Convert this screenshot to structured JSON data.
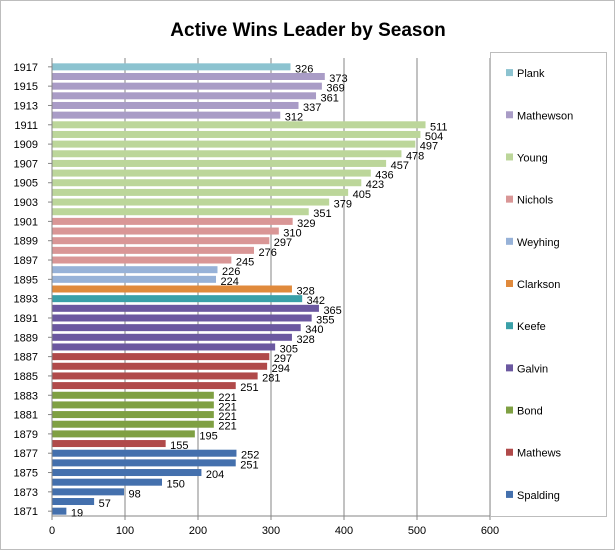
{
  "chart_data": {
    "type": "bar",
    "orientation": "horizontal",
    "title": "Active Wins Leader by Season",
    "xlabel": "",
    "ylabel": "",
    "xlim": [
      0,
      600
    ],
    "x_ticks": [
      "0",
      "100",
      "200",
      "300",
      "400",
      "500",
      "600"
    ],
    "grid": "vertical major gridlines",
    "legend_position": "right",
    "categories": [
      "1917",
      "1916",
      "1915",
      "1914",
      "1913",
      "1912",
      "1911",
      "1910",
      "1909",
      "1908",
      "1907",
      "1906",
      "1905",
      "1904",
      "1903",
      "1902",
      "1901",
      "1900",
      "1899",
      "1898",
      "1897",
      "1896",
      "1895",
      "1894",
      "1893",
      "1892",
      "1891",
      "1890",
      "1889",
      "1888",
      "1887",
      "1886",
      "1885",
      "1884",
      "1883",
      "1882",
      "1881",
      "1880",
      "1879",
      "1878",
      "1877",
      "1876",
      "1875",
      "1874",
      "1873",
      "1872",
      "1871"
    ],
    "tick_labels": [
      "1917",
      "1915",
      "1913",
      "1911",
      "1909",
      "1907",
      "1905",
      "1903",
      "1901",
      "1899",
      "1897",
      "1895",
      "1893",
      "1891",
      "1889",
      "1887",
      "1885",
      "1883",
      "1881",
      "1879",
      "1877",
      "1875",
      "1873",
      "1871"
    ],
    "bars": [
      {
        "year": "1917",
        "value": 326,
        "label": "326",
        "series": "Plank"
      },
      {
        "year": "1916",
        "value": 373,
        "label": "373",
        "series": "Mathewson"
      },
      {
        "year": "1915",
        "value": 369,
        "label": "369",
        "series": "Mathewson"
      },
      {
        "year": "1914",
        "value": 361,
        "label": "361",
        "series": "Mathewson"
      },
      {
        "year": "1913",
        "value": 337,
        "label": "337",
        "series": "Mathewson"
      },
      {
        "year": "1912",
        "value": 312,
        "label": "312",
        "series": "Mathewson"
      },
      {
        "year": "1911",
        "value": 511,
        "label": "511",
        "series": "Young"
      },
      {
        "year": "1910",
        "value": 504,
        "label": "504",
        "series": "Young"
      },
      {
        "year": "1909",
        "value": 497,
        "label": "497",
        "series": "Young"
      },
      {
        "year": "1908",
        "value": 478,
        "label": "478",
        "series": "Young"
      },
      {
        "year": "1907",
        "value": 457,
        "label": "457",
        "series": "Young"
      },
      {
        "year": "1906",
        "value": 436,
        "label": "436",
        "series": "Young"
      },
      {
        "year": "1905",
        "value": 423,
        "label": "423",
        "series": "Young"
      },
      {
        "year": "1904",
        "value": 405,
        "label": "405",
        "series": "Young"
      },
      {
        "year": "1903",
        "value": 379,
        "label": "379",
        "series": "Young"
      },
      {
        "year": "1902",
        "value": 351,
        "label": "351",
        "series": "Young"
      },
      {
        "year": "1901",
        "value": 329,
        "label": "329",
        "series": "Nichols"
      },
      {
        "year": "1900",
        "value": 310,
        "label": "310",
        "series": "Nichols"
      },
      {
        "year": "1899",
        "value": 297,
        "label": "297",
        "series": "Nichols"
      },
      {
        "year": "1898",
        "value": 276,
        "label": "276",
        "series": "Nichols"
      },
      {
        "year": "1897",
        "value": 245,
        "label": "245",
        "series": "Nichols"
      },
      {
        "year": "1896",
        "value": 226,
        "label": "226",
        "series": "Weyhing"
      },
      {
        "year": "1895",
        "value": 224,
        "label": "224",
        "series": "Weyhing"
      },
      {
        "year": "1894",
        "value": 328,
        "label": "328",
        "series": "Clarkson"
      },
      {
        "year": "1893",
        "value": 342,
        "label": "342",
        "series": "Keefe"
      },
      {
        "year": "1892",
        "value": 365,
        "label": "365",
        "series": "Galvin"
      },
      {
        "year": "1891",
        "value": 355,
        "label": "355",
        "series": "Galvin"
      },
      {
        "year": "1890",
        "value": 340,
        "label": "340",
        "series": "Galvin"
      },
      {
        "year": "1889",
        "value": 328,
        "label": "328",
        "series": "Galvin"
      },
      {
        "year": "1888",
        "value": 305,
        "label": "305",
        "series": "Galvin"
      },
      {
        "year": "1887",
        "value": 297,
        "label": "297",
        "series": "Mathews"
      },
      {
        "year": "1886",
        "value": 294,
        "label": "294",
        "series": "Mathews"
      },
      {
        "year": "1885",
        "value": 281,
        "label": "281",
        "series": "Mathews"
      },
      {
        "year": "1884",
        "value": 251,
        "label": "251",
        "series": "Mathews"
      },
      {
        "year": "1883",
        "value": 221,
        "label": "221",
        "series": "Bond"
      },
      {
        "year": "1882",
        "value": 221,
        "label": "221",
        "series": "Bond"
      },
      {
        "year": "1881",
        "value": 221,
        "label": "221",
        "series": "Bond"
      },
      {
        "year": "1880",
        "value": 221,
        "label": "221",
        "series": "Bond"
      },
      {
        "year": "1879",
        "value": 195,
        "label": "195",
        "series": "Bond"
      },
      {
        "year": "1878",
        "value": 155,
        "label": "155",
        "series": "Mathews"
      },
      {
        "year": "1877",
        "value": 252,
        "label": "252",
        "series": "Spalding"
      },
      {
        "year": "1876",
        "value": 251,
        "label": "251",
        "series": "Spalding"
      },
      {
        "year": "1875",
        "value": 204,
        "label": "204",
        "series": "Spalding"
      },
      {
        "year": "1874",
        "value": 150,
        "label": "150",
        "series": "Spalding"
      },
      {
        "year": "1873",
        "value": 98,
        "label": "98",
        "series": "Spalding"
      },
      {
        "year": "1872",
        "value": 57,
        "label": "57",
        "series": "Spalding"
      },
      {
        "year": "1871",
        "value": 19,
        "label": "19",
        "series": "Spalding"
      }
    ],
    "series": [
      {
        "name": "Plank",
        "color": "#8cc3d0"
      },
      {
        "name": "Mathewson",
        "color": "#a99cc6"
      },
      {
        "name": "Young",
        "color": "#bcd69a"
      },
      {
        "name": "Nichols",
        "color": "#d99696"
      },
      {
        "name": "Weyhing",
        "color": "#97b2d8"
      },
      {
        "name": "Clarkson",
        "color": "#e08a3c"
      },
      {
        "name": "Keefe",
        "color": "#3aa0a8"
      },
      {
        "name": "Galvin",
        "color": "#6b58a0"
      },
      {
        "name": "Bond",
        "color": "#7fa043"
      },
      {
        "name": "Mathews",
        "color": "#b04a4a"
      },
      {
        "name": "Spalding",
        "color": "#4470ad"
      }
    ]
  }
}
